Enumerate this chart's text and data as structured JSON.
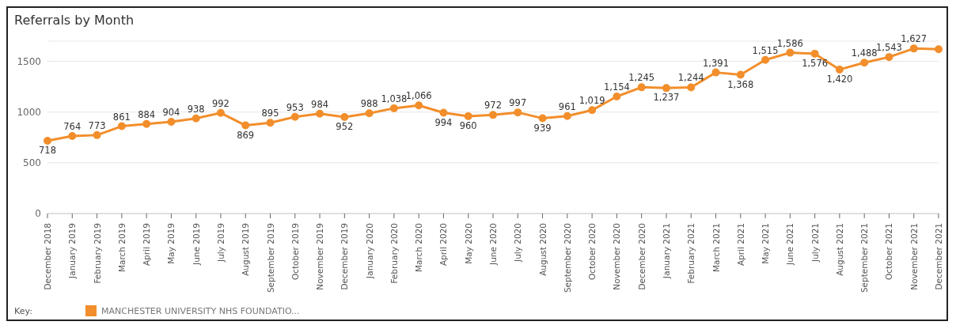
{
  "chart_data": {
    "type": "line",
    "title": "Referrals by Month",
    "legend_title": "Key:",
    "legend": "bottom left",
    "categories": [
      "December 2018",
      "January 2019",
      "February 2019",
      "March 2019",
      "April 2019",
      "May 2019",
      "June 2019",
      "July 2019",
      "August 2019",
      "September 2019",
      "October 2019",
      "November 2019",
      "December 2019",
      "January 2020",
      "February 2020",
      "March 2020",
      "April 2020",
      "May 2020",
      "June 2020",
      "July 2020",
      "August 2020",
      "September 2020",
      "October 2020",
      "November 2020",
      "December 2020",
      "January 2021",
      "February 2021",
      "March 2021",
      "April 2021",
      "May 2021",
      "June 2021",
      "July 2021",
      "August 2021",
      "September 2021",
      "October 2021",
      "November 2021",
      "December 2021"
    ],
    "series": [
      {
        "name": "MANCHESTER UNIVERSITY NHS FOUNDATIO...",
        "color": "#f28e2b",
        "values": [
          718,
          764,
          773,
          861,
          884,
          904,
          938,
          992,
          869,
          895,
          953,
          984,
          952,
          988,
          1038,
          1066,
          994,
          960,
          972,
          997,
          939,
          961,
          1019,
          1154,
          1245,
          1237,
          1244,
          1391,
          1368,
          1515,
          1586,
          1576,
          1420,
          1488,
          1543,
          1627,
          1620
        ],
        "value_labels": [
          "718",
          "764",
          "773",
          "861",
          "884",
          "904",
          "938",
          "992",
          "869",
          "895",
          "953",
          "984",
          "952",
          "988",
          "1,038",
          "1,066",
          "994",
          "960",
          "972",
          "997",
          "939",
          "961",
          "1,019",
          "1,154",
          "1,245",
          "1,237",
          "1,244",
          "1,391",
          "1,368",
          "1,515",
          "1,586",
          "1,576",
          "1,420",
          "1,488",
          "1,543",
          "1,627",
          null
        ]
      }
    ],
    "ylim": [
      0,
      1700
    ],
    "yticks": [
      0,
      500,
      1000,
      1500
    ],
    "grid": "y",
    "marker": "circle",
    "line_style": "solid"
  }
}
